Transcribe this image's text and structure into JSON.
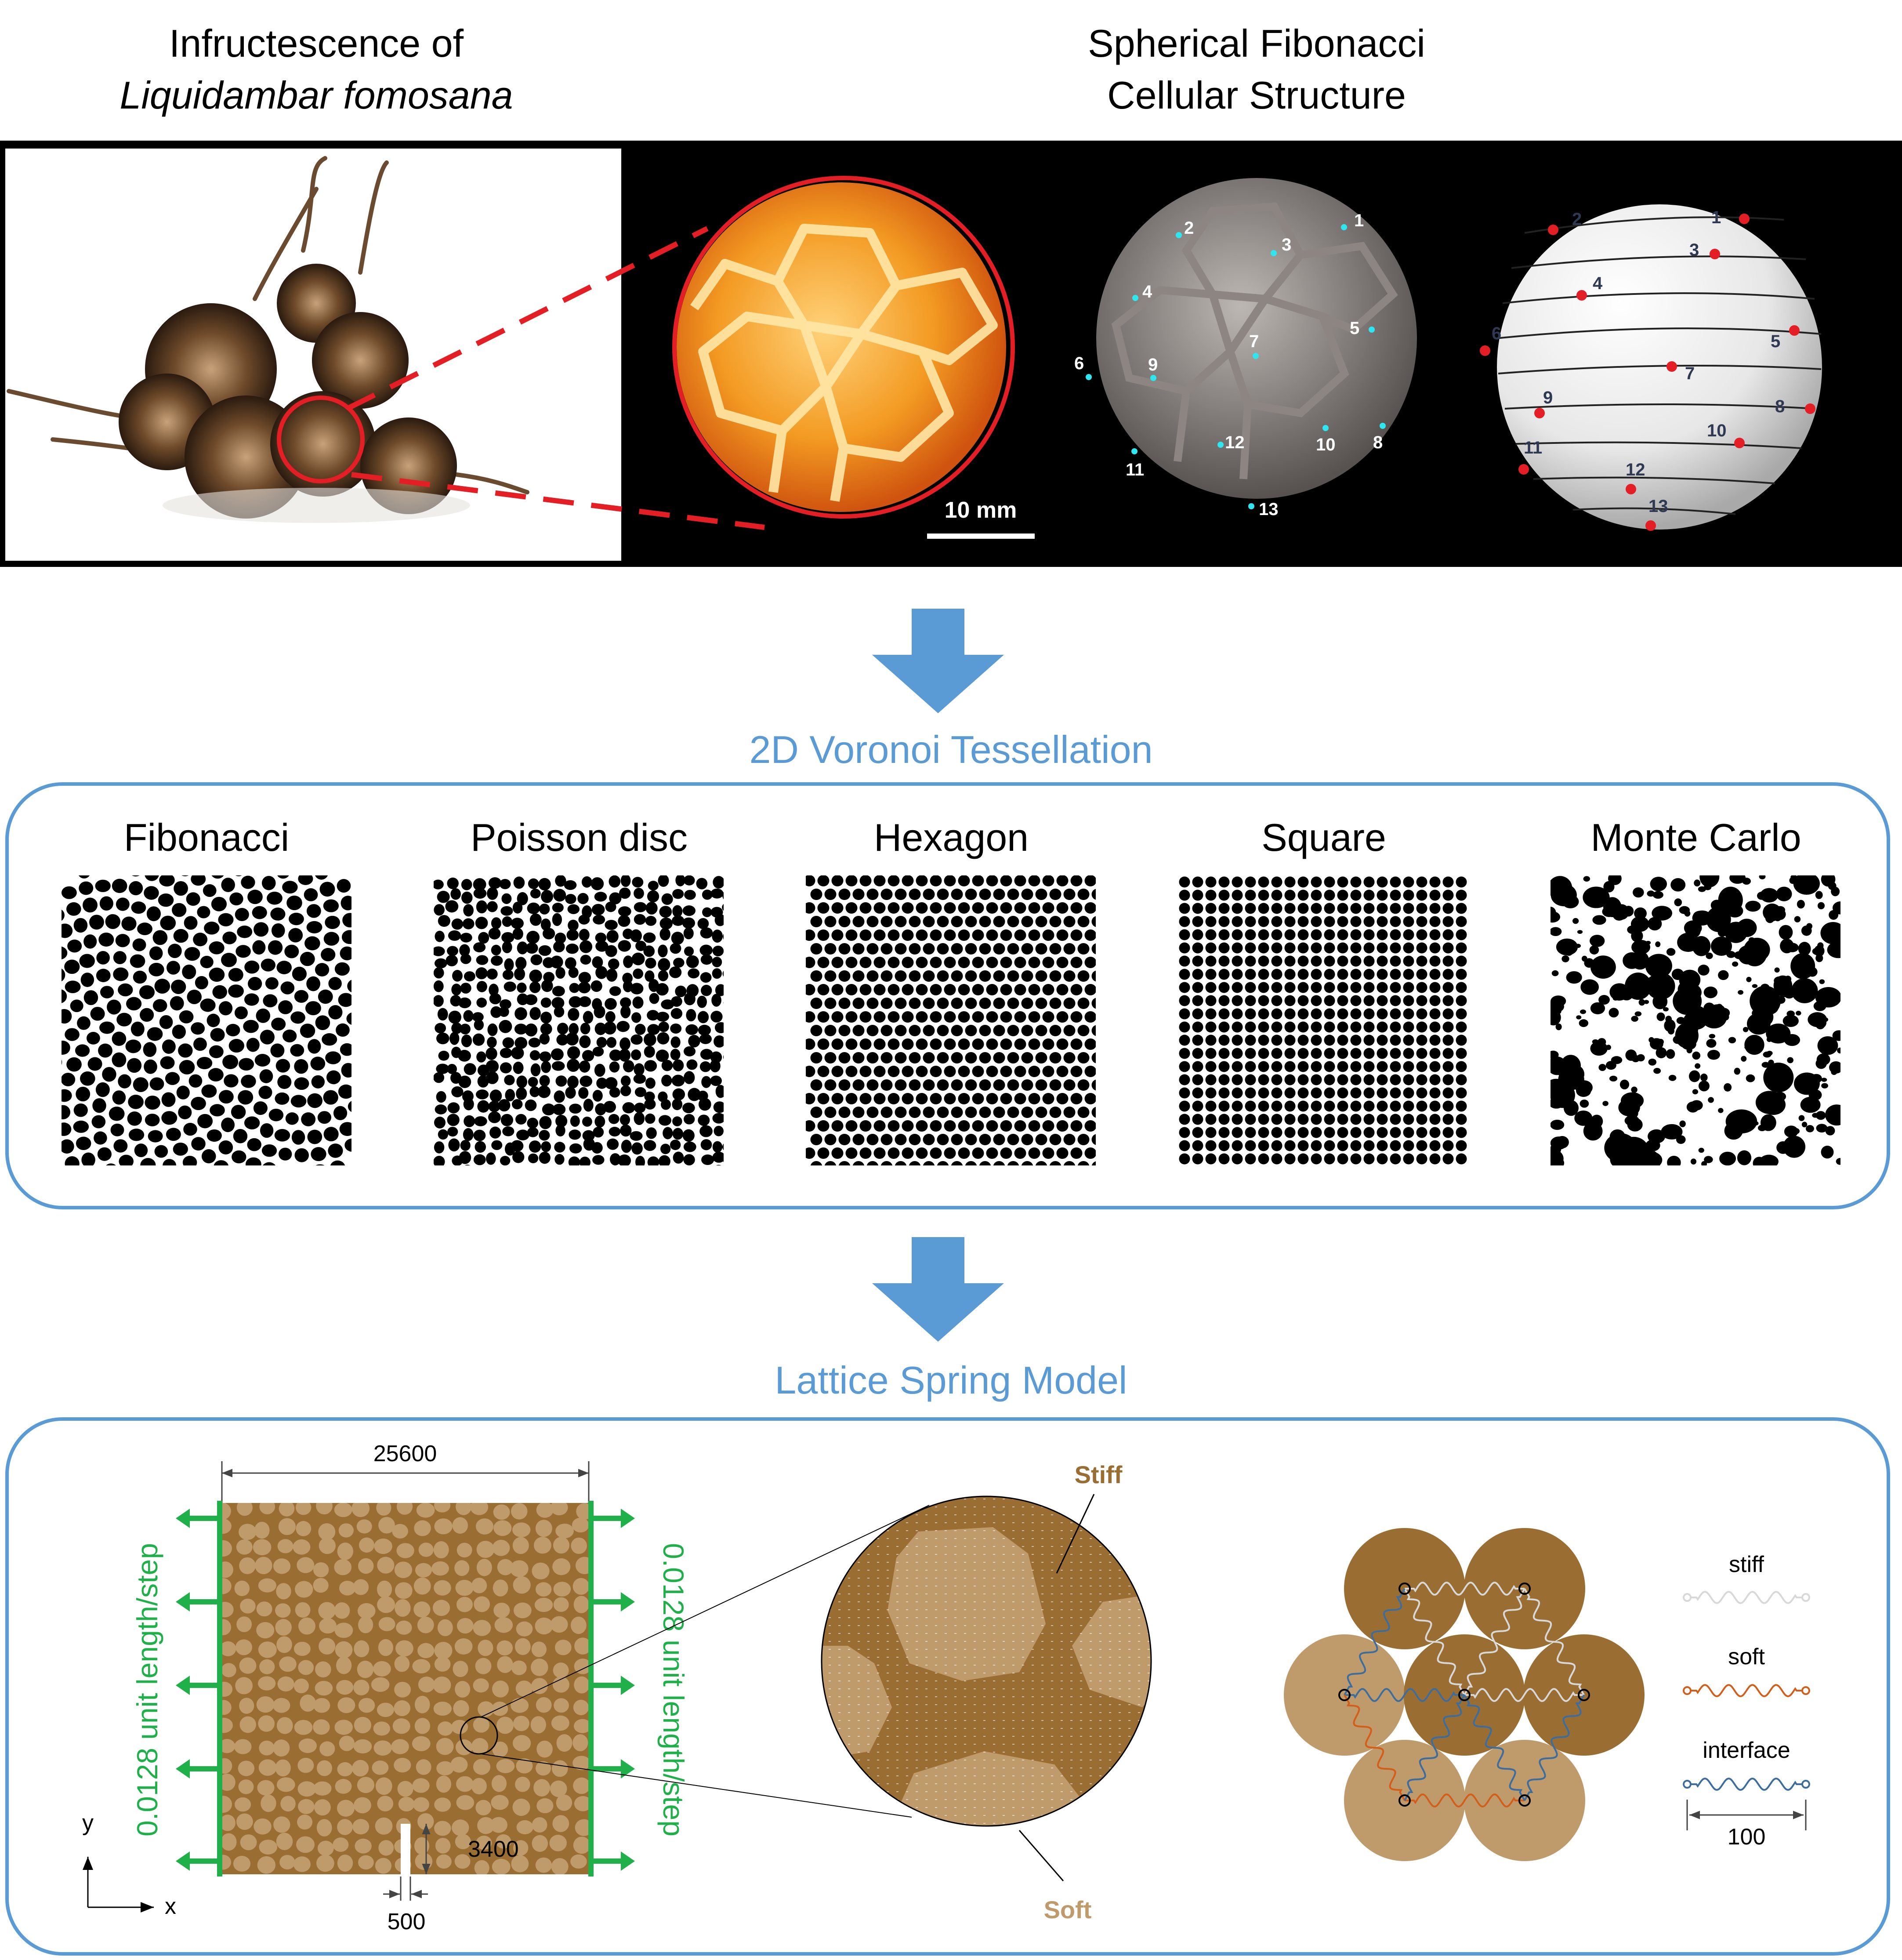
{
  "top": {
    "left_title_line1": "Infructescence of",
    "left_title_line2": "Liquidambar fomosana",
    "right_title_line1": "Spherical Fibonacci",
    "right_title_line2": "Cellular Structure",
    "scale_bar": "10 mm",
    "ct_labels": [
      "1",
      "2",
      "3",
      "4",
      "5",
      "6",
      "7",
      "8",
      "9",
      "10",
      "11",
      "12",
      "13"
    ],
    "sphere_labels": [
      "1",
      "2",
      "3",
      "4",
      "5",
      "6",
      "7",
      "8",
      "9",
      "10",
      "11",
      "12",
      "13"
    ]
  },
  "voronoi": {
    "title": "2D Voronoi Tessellation",
    "panels": [
      "Fibonacci",
      "Poisson disc",
      "Hexagon",
      "Square",
      "Monte Carlo"
    ]
  },
  "lattice": {
    "title": "Lattice Spring Model",
    "width_dim": "25600",
    "notch_len": "3400",
    "notch_width": "500",
    "load_label": "0.0128 unit length/step",
    "axis_x": "x",
    "axis_y": "y",
    "stiff_label": "Stiff",
    "soft_label": "Soft",
    "legend": {
      "stiff": "stiff",
      "soft": "soft",
      "interface": "interface",
      "length": "100"
    }
  },
  "colors": {
    "accent_blue": "#5b9bd5",
    "load_green": "#1fb04a",
    "stiff_brown": "#9a6e32",
    "soft_tan": "#bf9b6c",
    "red": "#e31e24"
  }
}
